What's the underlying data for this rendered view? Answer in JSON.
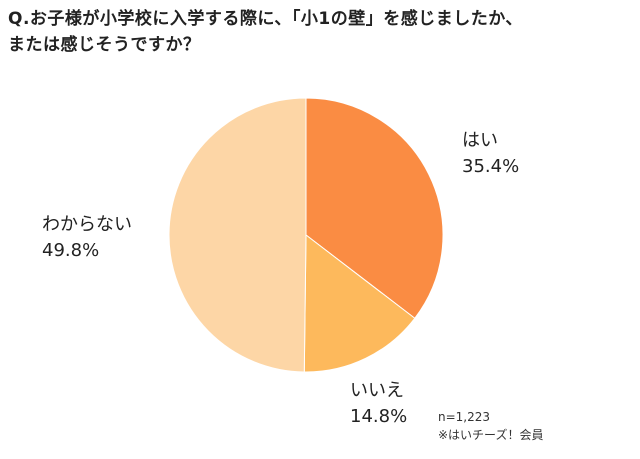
{
  "chart_data": {
    "type": "pie",
    "title_lines": [
      "Q.お子様が小学校に入学する際に、「小1の壁」を感じましたか、",
      "または感じそうですか？"
    ],
    "slices": [
      {
        "label": "はい",
        "value": 35.4,
        "value_label": "35.4%",
        "color": "#FA8C43"
      },
      {
        "label": "いいえ",
        "value": 14.8,
        "value_label": "14.8%",
        "color": "#FDB95C"
      },
      {
        "label": "わからない",
        "value": 49.8,
        "value_label": "49.8%",
        "color": "#FDD6A6"
      }
    ],
    "start": "top",
    "direction": "clockwise",
    "notes": [
      "n=1,223",
      "※はいチーズ！会員"
    ]
  }
}
